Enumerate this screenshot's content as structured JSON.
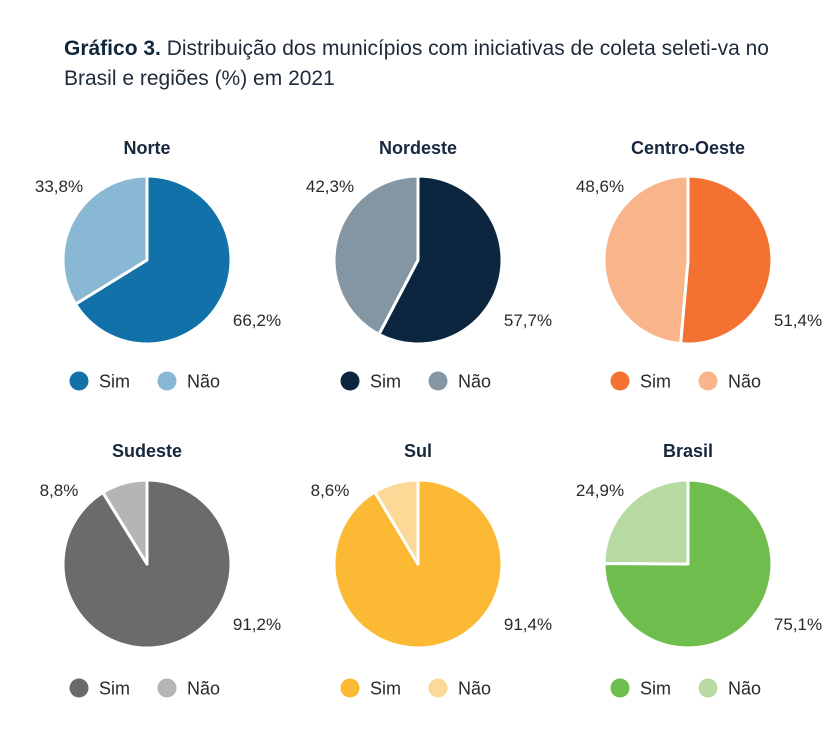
{
  "title": {
    "prefix": "Gráfico 3.",
    "text": " Distribuição dos municípios com iniciativas de coleta seleti-va no Brasil e regiões (%) em 2021"
  },
  "legend": {
    "sim": "Sim",
    "nao": "Não"
  },
  "chart_data": [
    {
      "type": "pie",
      "title": "Norte",
      "categories": [
        "Sim",
        "Não"
      ],
      "values": [
        66.2,
        33.8
      ],
      "labels": [
        "66,2%",
        "33,8%"
      ],
      "colors": [
        "#1271a8",
        "#88b8d4"
      ]
    },
    {
      "type": "pie",
      "title": "Nordeste",
      "categories": [
        "Sim",
        "Não"
      ],
      "values": [
        57.7,
        42.3
      ],
      "labels": [
        "57,7%",
        "42,3%"
      ],
      "colors": [
        "#0c2640",
        "#8496a4"
      ]
    },
    {
      "type": "pie",
      "title": "Centro-Oeste",
      "categories": [
        "Sim",
        "Não"
      ],
      "values": [
        51.4,
        48.6
      ],
      "labels": [
        "51,4%",
        "48,6%"
      ],
      "colors": [
        "#f37232",
        "#f9b48a"
      ]
    },
    {
      "type": "pie",
      "title": "Sudeste",
      "categories": [
        "Sim",
        "Não"
      ],
      "values": [
        91.2,
        8.8
      ],
      "labels": [
        "91,2%",
        "8,8%"
      ],
      "colors": [
        "#6b6b6b",
        "#b5b5b5"
      ]
    },
    {
      "type": "pie",
      "title": "Sul",
      "categories": [
        "Sim",
        "Não"
      ],
      "values": [
        91.4,
        8.6
      ],
      "labels": [
        "91,4%",
        "8,6%"
      ],
      "colors": [
        "#fbb934",
        "#fcd996"
      ]
    },
    {
      "type": "pie",
      "title": "Brasil",
      "categories": [
        "Sim",
        "Não"
      ],
      "values": [
        75.1,
        24.9
      ],
      "labels": [
        "75,1%",
        "24,9%"
      ],
      "colors": [
        "#6fbd4c",
        "#b7daa2"
      ]
    }
  ]
}
